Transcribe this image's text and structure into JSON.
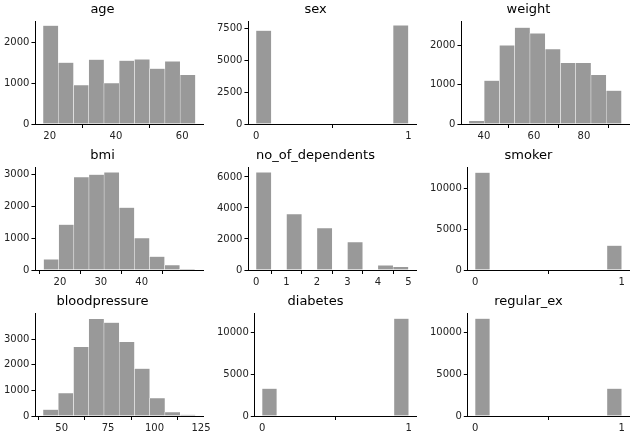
{
  "chart_data": [
    {
      "type": "histogram",
      "title": "age",
      "color": "#999999",
      "grid": false,
      "bins": [
        18,
        22.6,
        27.2,
        31.8,
        36.4,
        41,
        45.6,
        50.2,
        54.8,
        59.4,
        64
      ],
      "values": [
        2400,
        1500,
        950,
        1570,
        1000,
        1550,
        1580,
        1350,
        1530,
        1200
      ],
      "xlim": [
        15.7,
        66.3
      ],
      "xticks": [
        20,
        40,
        60
      ],
      "ylim": [
        0,
        2500
      ],
      "yticks": [
        0,
        1000,
        2000
      ]
    },
    {
      "type": "histogram",
      "title": "sex",
      "color": "#999999",
      "grid": false,
      "bins": [
        0,
        0.1,
        0.2,
        0.3,
        0.4,
        0.5,
        0.6,
        0.7,
        0.8,
        0.9,
        1
      ],
      "values": [
        7300,
        0,
        0,
        0,
        0,
        0,
        0,
        0,
        0,
        7700
      ],
      "xlim": [
        -0.05,
        1.05
      ],
      "xticks": [
        0,
        1
      ],
      "ylim": [
        0,
        8000
      ],
      "yticks": [
        0,
        2500,
        5000,
        7500
      ]
    },
    {
      "type": "histogram",
      "title": "weight",
      "color": "#999999",
      "grid": false,
      "bins": [
        34,
        40.1,
        46.2,
        52.3,
        58.4,
        64.5,
        70.6,
        76.7,
        82.8,
        88.9,
        95
      ],
      "values": [
        80,
        1100,
        2000,
        2450,
        2300,
        1900,
        1550,
        1550,
        1250,
        850
      ],
      "xlim": [
        31,
        98
      ],
      "xticks": [
        40,
        60,
        80
      ],
      "ylim": [
        0,
        2600
      ],
      "yticks": [
        0,
        1000,
        2000
      ]
    },
    {
      "type": "histogram",
      "title": "bmi",
      "color": "#999999",
      "grid": false,
      "bins": [
        16,
        19.7,
        23.4,
        27.1,
        30.8,
        34.5,
        38.2,
        41.9,
        45.6,
        49.3,
        53
      ],
      "values": [
        330,
        1420,
        2900,
        2980,
        3050,
        1950,
        1000,
        420,
        150,
        30
      ],
      "xlim": [
        14,
        55
      ],
      "xticks": [
        20,
        30,
        40
      ],
      "ylim": [
        0,
        3200
      ],
      "yticks": [
        0,
        1000,
        2000,
        3000
      ]
    },
    {
      "type": "histogram",
      "title": "no_of_dependents",
      "color": "#999999",
      "grid": false,
      "bins": [
        0,
        0.5,
        1,
        1.5,
        2,
        2.5,
        3,
        3.5,
        4,
        4.5,
        5
      ],
      "values": [
        6300,
        0,
        3600,
        0,
        2700,
        0,
        1800,
        0,
        300,
        200
      ],
      "xlim": [
        -0.25,
        5.25
      ],
      "xticks": [
        0,
        1,
        2,
        3,
        4,
        5
      ],
      "ylim": [
        0,
        6600
      ],
      "yticks": [
        0,
        2000,
        4000,
        6000
      ]
    },
    {
      "type": "histogram",
      "title": "smoker",
      "color": "#999999",
      "grid": false,
      "bins": [
        0,
        0.1,
        0.2,
        0.3,
        0.4,
        0.5,
        0.6,
        0.7,
        0.8,
        0.9,
        1
      ],
      "values": [
        12000,
        0,
        0,
        0,
        0,
        0,
        0,
        0,
        0,
        3000
      ],
      "xlim": [
        -0.05,
        1.05
      ],
      "xticks": [
        0,
        1
      ],
      "ylim": [
        0,
        12600
      ],
      "yticks": [
        0,
        5000,
        10000
      ]
    },
    {
      "type": "histogram",
      "title": "bloodpressure",
      "color": "#999999",
      "grid": false,
      "bins": [
        40,
        48.2,
        56.4,
        64.6,
        72.8,
        81,
        89.2,
        97.4,
        105.6,
        113.8,
        122
      ],
      "values": [
        250,
        900,
        2700,
        3800,
        3650,
        2900,
        1850,
        700,
        150,
        50
      ],
      "xlim": [
        35.9,
        126.1
      ],
      "xticks": [
        50,
        75,
        100,
        125
      ],
      "ylim": [
        0,
        4000
      ],
      "yticks": [
        0,
        1000,
        2000,
        3000
      ]
    },
    {
      "type": "histogram",
      "title": "diabetes",
      "color": "#999999",
      "grid": false,
      "bins": [
        0,
        0.1,
        0.2,
        0.3,
        0.4,
        0.5,
        0.6,
        0.7,
        0.8,
        0.9,
        1
      ],
      "values": [
        3300,
        0,
        0,
        0,
        0,
        0,
        0,
        0,
        0,
        11700
      ],
      "xlim": [
        -0.05,
        1.05
      ],
      "xticks": [
        0,
        1
      ],
      "ylim": [
        0,
        12300
      ],
      "yticks": [
        0,
        5000,
        10000
      ]
    },
    {
      "type": "histogram",
      "title": "regular_ex",
      "color": "#999999",
      "grid": false,
      "bins": [
        0,
        0.1,
        0.2,
        0.3,
        0.4,
        0.5,
        0.6,
        0.7,
        0.8,
        0.9,
        1
      ],
      "values": [
        11700,
        0,
        0,
        0,
        0,
        0,
        0,
        0,
        0,
        3300
      ],
      "xlim": [
        -0.05,
        1.05
      ],
      "xticks": [
        0,
        1
      ],
      "ylim": [
        0,
        12300
      ],
      "yticks": [
        0,
        5000,
        10000
      ]
    }
  ]
}
